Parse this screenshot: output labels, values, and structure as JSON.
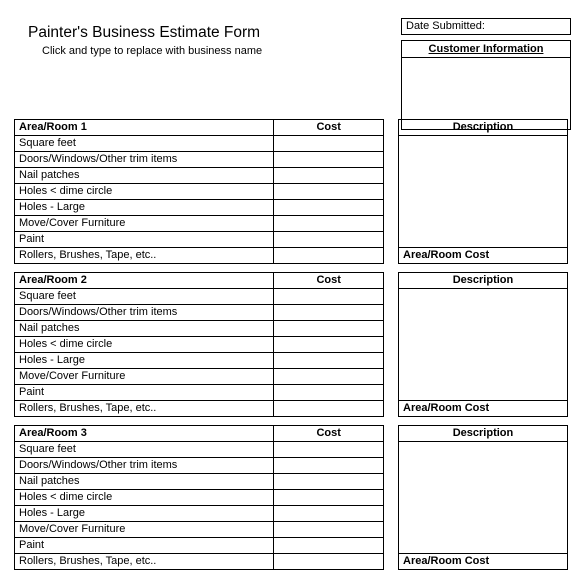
{
  "header": {
    "title": "Painter's Business Estimate Form",
    "subtitle": "Click and type to replace with business name",
    "date_label": "Date Submitted:",
    "customer_info_header": "Customer Information"
  },
  "section_headers": {
    "cost": "Cost",
    "description": "Description",
    "area_cost": "Area/Room Cost"
  },
  "items": [
    "Square feet",
    "Doors/Windows/Other trim items",
    "Nail patches",
    "Holes < dime circle",
    "Holes - Large",
    "Move/Cover Furniture",
    "Paint",
    "Rollers, Brushes, Tape, etc.."
  ],
  "sections": [
    {
      "title": "Area/Room 1"
    },
    {
      "title": "Area/Room 2"
    },
    {
      "title": "Area/Room 3"
    }
  ]
}
